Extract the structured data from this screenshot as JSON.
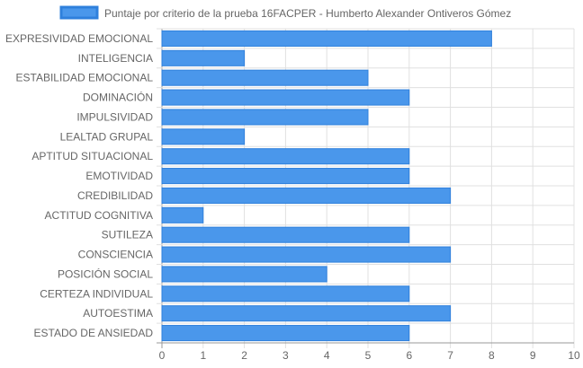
{
  "chart_data": {
    "type": "bar",
    "orientation": "horizontal",
    "title": "",
    "categories": [
      "EXPRESIVIDAD EMOCIONAL",
      "INTELIGENCIA",
      "ESTABILIDAD EMOCIONAL",
      "DOMINACIÓN",
      "IMPULSIVIDAD",
      "LEALTAD GRUPAL",
      "APTITUD SITUACIONAL",
      "EMOTIVIDAD",
      "CREDIBILIDAD",
      "ACTITUD COGNITIVA",
      "SUTILEZA",
      "CONSCIENCIA",
      "POSICIÓN SOCIAL",
      "CERTEZA INDIVIDUAL",
      "AUTOESTIMA",
      "ESTADO DE ANSIEDAD"
    ],
    "series": [
      {
        "name": "Puntaje por criterio de la prueba 16FACPER - Humberto Alexander Ontiveros Gómez",
        "values": [
          8,
          2,
          5,
          6,
          5,
          2,
          6,
          6,
          7,
          1,
          6,
          7,
          4,
          6,
          7,
          6
        ]
      }
    ],
    "xlim": [
      0,
      10
    ],
    "xticks": [
      "0",
      "1",
      "2",
      "3",
      "4",
      "5",
      "6",
      "7",
      "8",
      "9",
      "10"
    ],
    "xlabel": "",
    "ylabel": "",
    "grid": true,
    "legend_position": "top",
    "colors": {
      "bar_fill": "#4a97eb",
      "bar_border": "#2f80dc",
      "grid": "#e0e0e0",
      "axis": "#999999",
      "text": "#666666"
    }
  }
}
